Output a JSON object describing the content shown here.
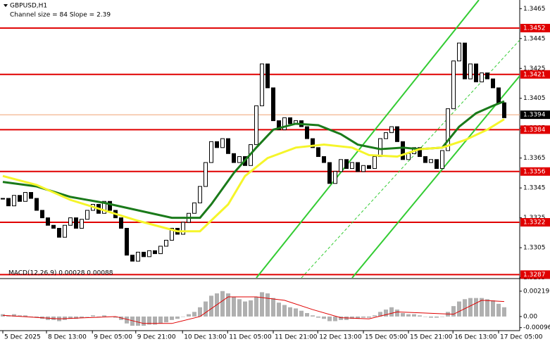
{
  "chart_data": {
    "type": "candlestick",
    "title": "GBPUSD,H1",
    "annotation": "Channel size = 84 Slope = 2.39",
    "xlim": [
      -0.5,
      91.75
    ],
    "xticks": [
      {
        "value": 0,
        "label": "5 Dec 2025"
      },
      {
        "value": 7.75,
        "label": "8 Dec 13:00"
      },
      {
        "value": 15.9,
        "label": "9 Dec 05:00"
      },
      {
        "value": 23.6,
        "label": "9 Dec 21:00"
      },
      {
        "value": 31.9,
        "label": "10 Dec 13:00"
      },
      {
        "value": 39.9,
        "label": "11 Dec 05:00"
      },
      {
        "value": 48,
        "label": "11 Dec 21:00"
      },
      {
        "value": 55.9,
        "label": "12 Dec 13:00"
      },
      {
        "value": 64,
        "label": "15 Dec 05:00"
      },
      {
        "value": 72,
        "label": "15 Dec 21:00"
      },
      {
        "value": 79.9,
        "label": "16 Dec 13:00"
      },
      {
        "value": 88,
        "label": "17 Dec 05:00"
      }
    ],
    "ylim": [
      1.32848,
      1.34708
    ],
    "yticks": [
      1.3285,
      1.3305,
      1.3325,
      1.3345,
      1.3365,
      1.3385,
      1.3405,
      1.3425,
      1.3445,
      1.3465
    ],
    "closes": [
      1.3338,
      1.3333,
      1.334,
      1.3336,
      1.3342,
      1.3338,
      1.333,
      1.3325,
      1.332,
      1.3318,
      1.3312,
      1.332,
      1.3325,
      1.3318,
      1.3324,
      1.333,
      1.3334,
      1.3328,
      1.3336,
      1.333,
      1.3325,
      1.3318,
      1.33,
      1.3296,
      1.3302,
      1.3299,
      1.3303,
      1.3301,
      1.3306,
      1.331,
      1.3318,
      1.3314,
      1.3322,
      1.3328,
      1.3335,
      1.3346,
      1.3362,
      1.3376,
      1.3372,
      1.3378,
      1.3368,
      1.3362,
      1.3366,
      1.336,
      1.3374,
      1.34,
      1.3428,
      1.3412,
      1.339,
      1.3384,
      1.3392,
      1.3388,
      1.339,
      1.3386,
      1.3378,
      1.3372,
      1.3366,
      1.3362,
      1.3348,
      1.3356,
      1.3364,
      1.3358,
      1.3362,
      1.3356,
      1.336,
      1.3358,
      1.3366,
      1.3378,
      1.3382,
      1.3386,
      1.3376,
      1.3364,
      1.3368,
      1.3372,
      1.3366,
      1.3362,
      1.3364,
      1.3358,
      1.337,
      1.3398,
      1.343,
      1.3442,
      1.3418,
      1.3428,
      1.3416,
      1.3422,
      1.3418,
      1.3412,
      1.3402,
      1.3392
    ],
    "series": [
      {
        "color": "#1a7a1a",
        "x": [
          0,
          6,
          12,
          18,
          24,
          30,
          35,
          37,
          41,
          45,
          48,
          52,
          56,
          60,
          63,
          67,
          71,
          74,
          78,
          81,
          84,
          87,
          89
        ],
        "values": [
          1.3349,
          1.3346,
          1.3339,
          1.3335,
          1.333,
          1.3325,
          1.3325,
          1.3334,
          1.3355,
          1.3372,
          1.3384,
          1.3388,
          1.3387,
          1.3381,
          1.3374,
          1.3371,
          1.3372,
          1.3371,
          1.3372,
          1.3386,
          1.3395,
          1.34,
          1.3403
        ]
      },
      {
        "color": "#f5f52a",
        "x": [
          0,
          6,
          12,
          18,
          24,
          31,
          35,
          40,
          43,
          47,
          52,
          57,
          62,
          65,
          70,
          74,
          78,
          82,
          86,
          89
        ],
        "values": [
          1.3353,
          1.3347,
          1.3337,
          1.333,
          1.3323,
          1.3316,
          1.3316,
          1.3334,
          1.3353,
          1.3365,
          1.3372,
          1.3374,
          1.3372,
          1.3367,
          1.3366,
          1.3371,
          1.3372,
          1.3377,
          1.3384,
          1.3391
        ]
      }
    ],
    "channel": {
      "color": "#33cc33",
      "lines": [
        {
          "x": [
            45,
            84.5
          ],
          "values": [
            1.32848,
            1.34708
          ]
        },
        {
          "x": [
            62,
            91.75
          ],
          "values": [
            1.32848,
            1.342
          ]
        },
        {
          "x": [
            53,
            91.75
          ],
          "values": [
            1.32848,
            1.3444
          ],
          "dashed": true
        }
      ]
    },
    "levels": [
      1.3452,
      1.3421,
      1.3384,
      1.3356,
      1.3322,
      1.3287
    ],
    "level_color": "#e00000",
    "last_price": 1.3394,
    "macd": {
      "label": "MACD(12,26,9) 0.00028 0.00088",
      "ylim": [
        -0.00122,
        0.00322
      ],
      "yticks": [
        0.00219,
        {
          "value": 0,
          "label": "0.00"
        },
        -0.00096
      ],
      "histogram": [
        0.0002,
        0.0001,
        0.0002,
        0.0001,
        0.0001,
        0,
        -0.0001,
        -0.0002,
        -0.0003,
        -0.0003,
        -0.0004,
        -0.0003,
        -0.0002,
        -0.0002,
        -0.0001,
        0,
        0.0001,
        0,
        0.0001,
        0,
        -0.0001,
        -0.0003,
        -0.0006,
        -0.0008,
        -0.0008,
        -0.0008,
        -0.0007,
        -0.0007,
        -0.0006,
        -0.0005,
        -0.0003,
        -0.0002,
        0,
        0.0002,
        0.0004,
        0.0008,
        0.0013,
        0.0018,
        0.002,
        0.0022,
        0.002,
        0.0017,
        0.0015,
        0.0013,
        0.0014,
        0.0017,
        0.0021,
        0.002,
        0.0016,
        0.0012,
        0.001,
        0.0008,
        0.0007,
        0.0005,
        0.0003,
        0.0001,
        -0.0001,
        -0.0002,
        -0.0004,
        -0.0004,
        -0.0003,
        -0.0003,
        -0.0002,
        -0.0002,
        -0.0001,
        -0.0001,
        0.0001,
        0.0004,
        0.0006,
        0.0008,
        0.0006,
        0.0003,
        0.0002,
        0.0002,
        0.0001,
        0,
        -0.0001,
        -0.0001,
        0,
        0.0004,
        0.0009,
        0.0013,
        0.0015,
        0.0016,
        0.0016,
        0.0016,
        0.0015,
        0.0014,
        0.0011,
        0.0008
      ],
      "hist_color": "#b0b0b0",
      "signal": {
        "color": "#e00000",
        "x": [
          0,
          10,
          20,
          25,
          30,
          35,
          40,
          45,
          50,
          55,
          60,
          65,
          70,
          75,
          80,
          85,
          89
        ],
        "values": [
          0.0001,
          -0.0002,
          0,
          -0.0006,
          -0.0006,
          0,
          0.0017,
          0.0017,
          0.0014,
          0.0006,
          -0.0001,
          -0.0002,
          0.0004,
          0.0003,
          0.0002,
          0.0014,
          0.0013
        ]
      }
    }
  }
}
